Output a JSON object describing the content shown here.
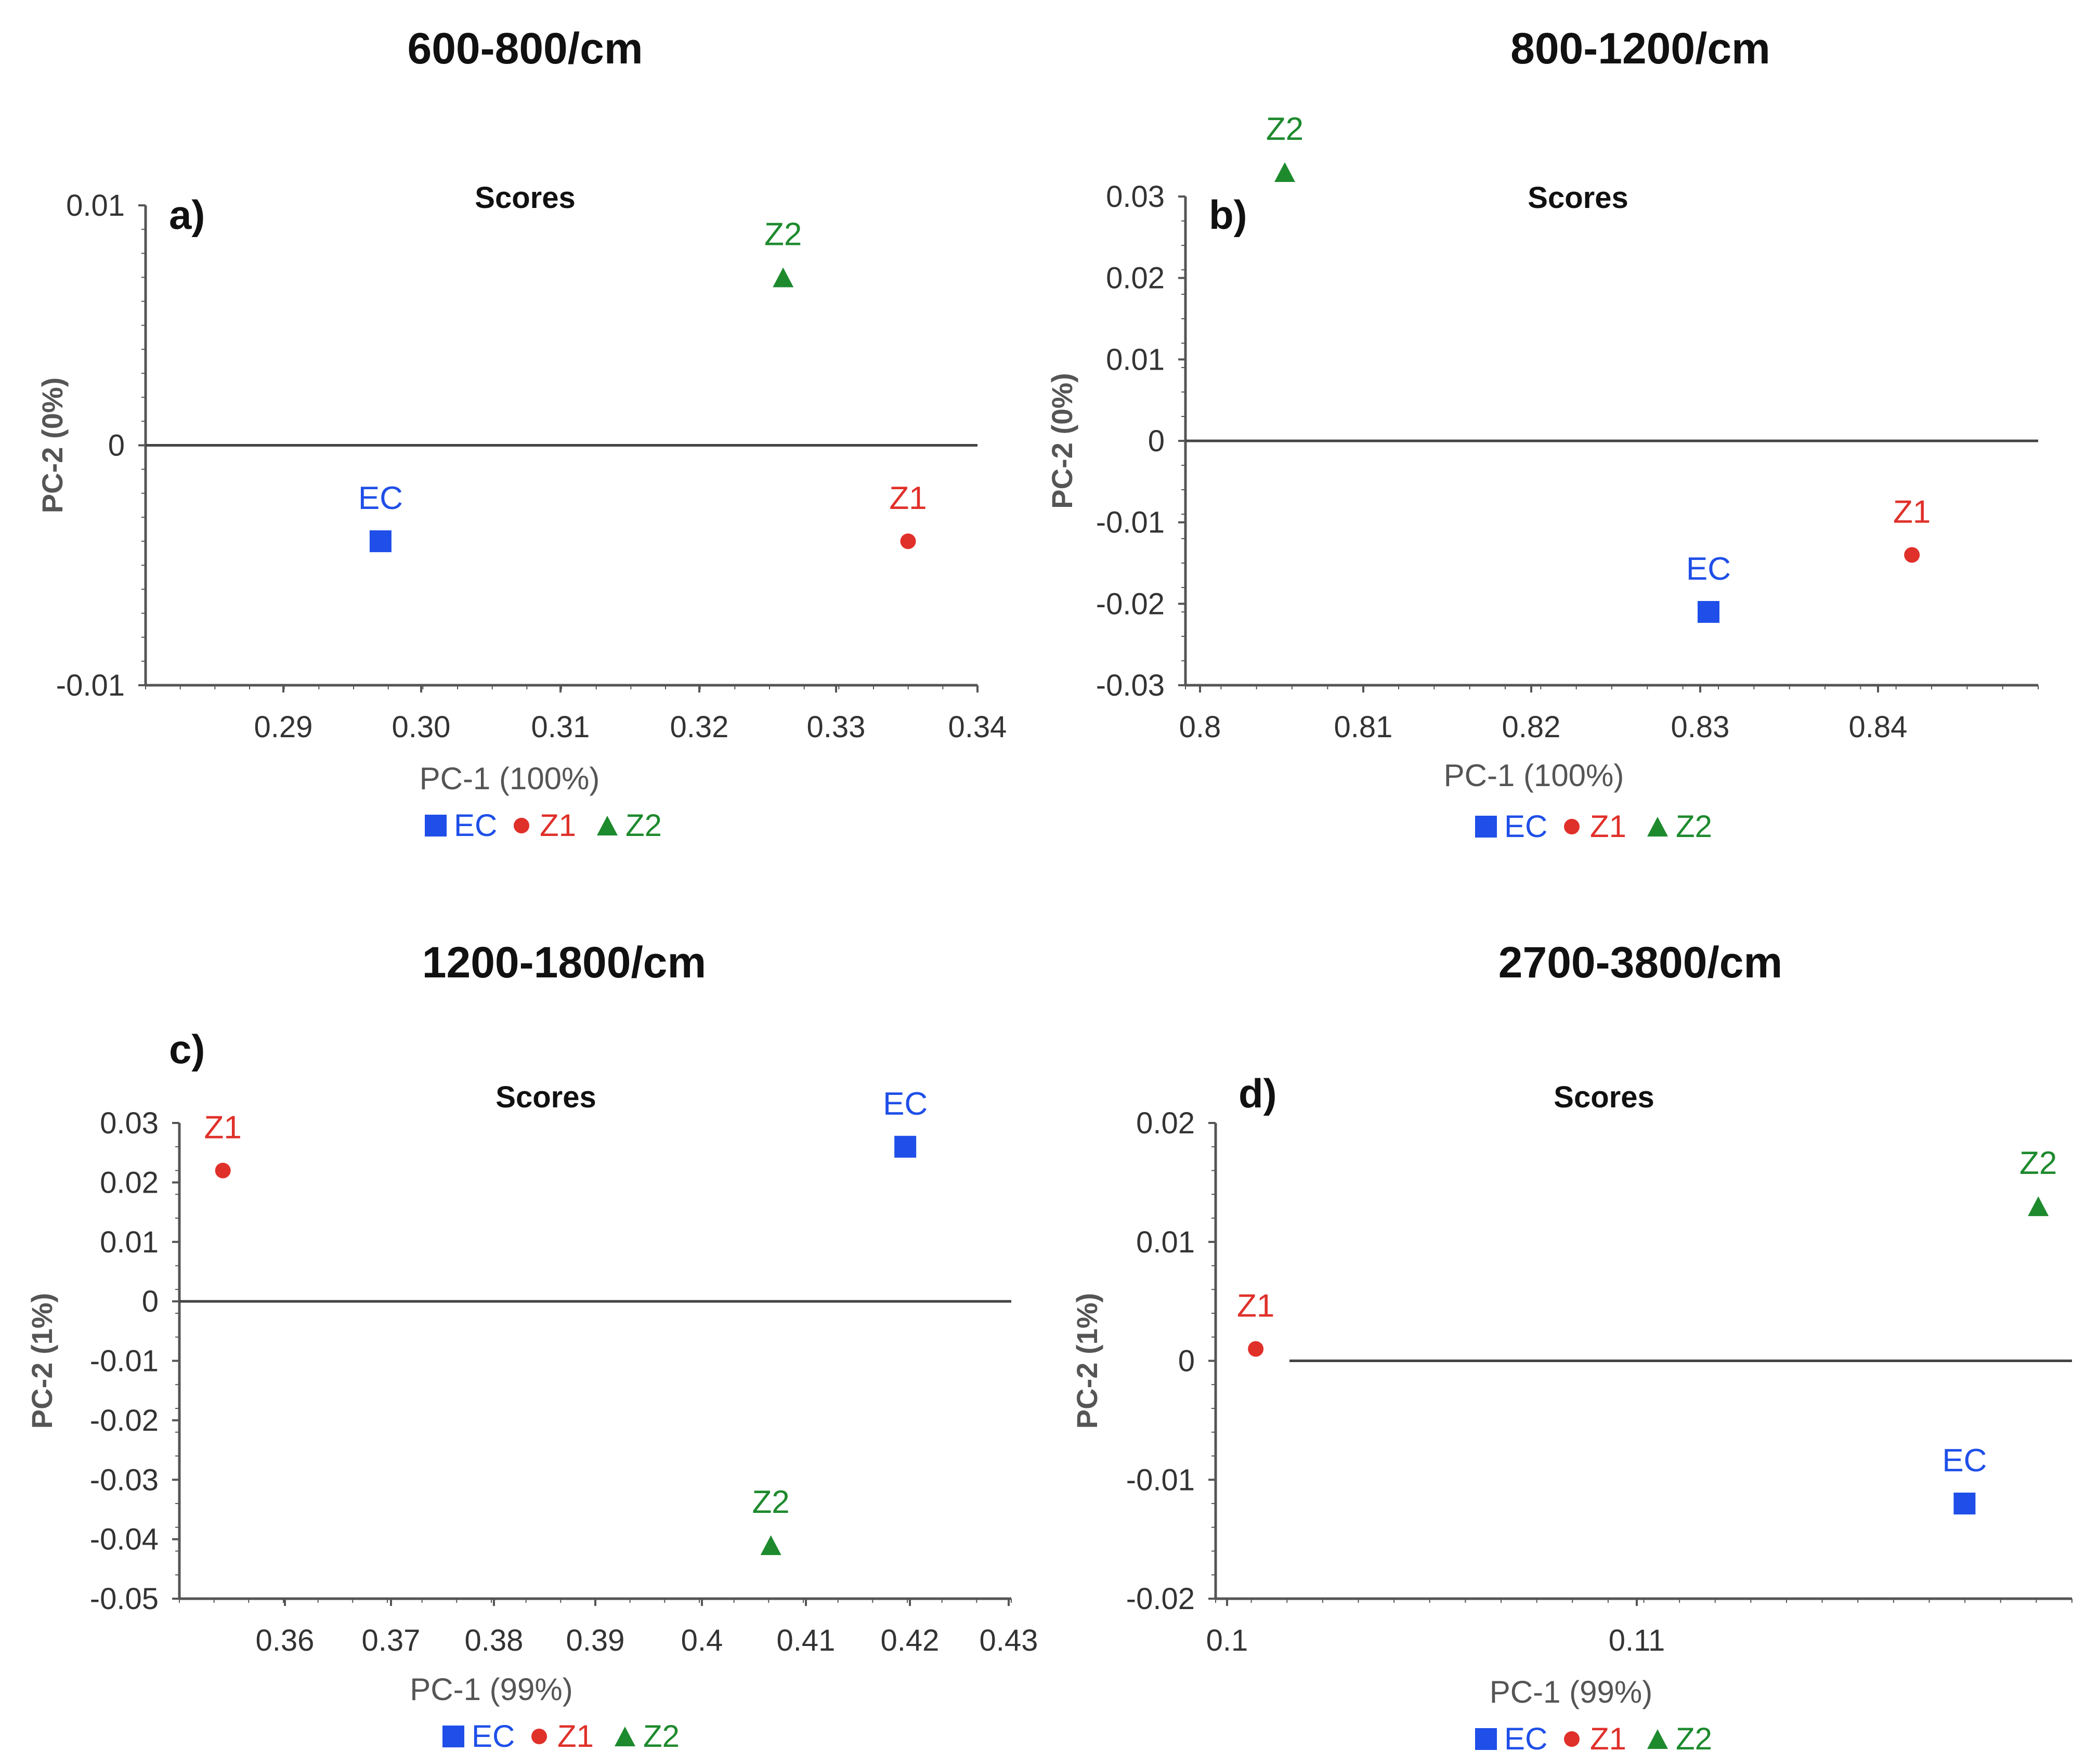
{
  "colors": {
    "EC": "#1f4fe8",
    "Z1": "#e0302a",
    "Z2": "#1e8a2e",
    "axis": "#555555",
    "text": "#111111"
  },
  "legend": [
    {
      "name": "EC",
      "marker": "square"
    },
    {
      "name": "Z1",
      "marker": "circle"
    },
    {
      "name": "Z2",
      "marker": "triangle"
    }
  ],
  "chart_data": [
    {
      "type": "scatter",
      "panel_title": "600-800/cm",
      "panel_letter": "a)",
      "subtitle": "Scores",
      "xlabel": "PC-1 (100%)",
      "ylabel": "PC-2 (0%)",
      "xlim": [
        0.28,
        0.34
      ],
      "ylim": [
        -0.01,
        0.01
      ],
      "xticks": [
        "0.29",
        "0.30",
        "0.31",
        "0.32",
        "0.33",
        "0.34"
      ],
      "yticks": [
        "0.01",
        "0",
        "-0.01"
      ],
      "points": [
        {
          "series": "EC",
          "x": 0.297,
          "y": -0.004
        },
        {
          "series": "Z1",
          "x": 0.335,
          "y": -0.004
        },
        {
          "series": "Z2",
          "x": 0.326,
          "y": 0.007
        }
      ]
    },
    {
      "type": "scatter",
      "panel_title": "800-1200/cm",
      "panel_letter": "b)",
      "subtitle": "Scores",
      "xlabel": "PC-1 (100%)",
      "ylabel": "PC-2 (0%)",
      "xlim": [
        0.8,
        0.85
      ],
      "ylim": [
        -0.03,
        0.03
      ],
      "xticks": [
        "0.8",
        "0.81",
        "0.82",
        "0.83",
        "0.84"
      ],
      "yticks": [
        "0.03",
        "0.02",
        "0.01",
        "0",
        "-0.01",
        "-0.02",
        "-0.03"
      ],
      "points": [
        {
          "series": "EC",
          "x": 0.83,
          "y": -0.021
        },
        {
          "series": "Z1",
          "x": 0.842,
          "y": -0.014
        },
        {
          "series": "Z2",
          "x": 0.805,
          "y": 0.033
        }
      ]
    },
    {
      "type": "scatter",
      "panel_title": "1200-1800/cm",
      "panel_letter": "c)",
      "subtitle": "Scores",
      "xlabel": "PC-1 (99%)",
      "ylabel": "PC-2 (1%)",
      "xlim": [
        0.35,
        0.43
      ],
      "ylim": [
        -0.05,
        0.03
      ],
      "xticks": [
        "0.36",
        "0.37",
        "0.38",
        "0.39",
        "0.4",
        "0.41",
        "0.42",
        "0.43"
      ],
      "yticks": [
        "0.03",
        "0.02",
        "0.01",
        "0",
        "-0.01",
        "-0.02",
        "-0.03",
        "-0.04",
        "-0.05"
      ],
      "points": [
        {
          "series": "EC",
          "x": 0.42,
          "y": 0.026
        },
        {
          "series": "Z1",
          "x": 0.354,
          "y": 0.022
        },
        {
          "series": "Z2",
          "x": 0.407,
          "y": -0.041
        }
      ]
    },
    {
      "type": "scatter",
      "panel_title": "2700-3800/cm",
      "panel_letter": "d)",
      "subtitle": "Scores",
      "xlabel": "PC-1 (99%)",
      "ylabel": "PC-2 (1%)",
      "xlim": [
        0.1,
        0.12
      ],
      "ylim": [
        -0.02,
        0.02
      ],
      "xticks": [
        "0.1",
        "0.11"
      ],
      "yticks": [
        "0.02",
        "0.01",
        "0",
        "-0.01",
        "-0.02"
      ],
      "points": [
        {
          "series": "EC",
          "x": 0.118,
          "y": -0.012
        },
        {
          "series": "Z1",
          "x": 0.1007,
          "y": 0.001
        },
        {
          "series": "Z2",
          "x": 0.1198,
          "y": 0.013
        }
      ]
    }
  ]
}
